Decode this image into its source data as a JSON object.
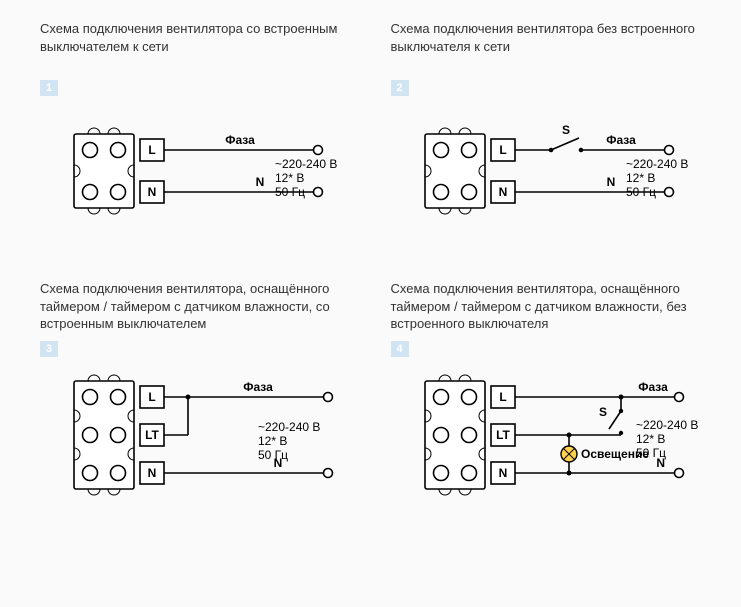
{
  "spec": {
    "l1": "~220-240 В",
    "l2": "12* В",
    "l3": "50 Гц"
  },
  "labels": {
    "phase": "Фаза",
    "N": "N",
    "S": "S",
    "light": "Освещение"
  },
  "colors": {
    "badge_bg": "#d0e4f2",
    "lamp": "#ffd24d"
  },
  "panels": [
    {
      "title": "Схема подключения вентилятора со встроенным выключателем к сети",
      "badge": "1",
      "type": "two-terminal",
      "terminals": [
        "L",
        "N"
      ],
      "switch": false,
      "lamp": false
    },
    {
      "title": "Схема подключения вентилятора без встроенного выключателя к сети",
      "badge": "2",
      "type": "two-terminal",
      "terminals": [
        "L",
        "N"
      ],
      "switch": true,
      "lamp": false
    },
    {
      "title": "Схема подключения вентилятора, оснащённого таймером / таймером с датчиком влажности, со встроенным выключателем",
      "badge": "3",
      "type": "three-terminal",
      "terminals": [
        "L",
        "LT",
        "N"
      ],
      "switch": false,
      "lamp": false
    },
    {
      "title": "Схема подключения вентилятора, оснащённого таймером / таймером с датчиком влажности, без встроенного выключателя",
      "badge": "4",
      "type": "three-terminal",
      "terminals": [
        "L",
        "LT",
        "N"
      ],
      "switch": true,
      "lamp": true
    }
  ]
}
